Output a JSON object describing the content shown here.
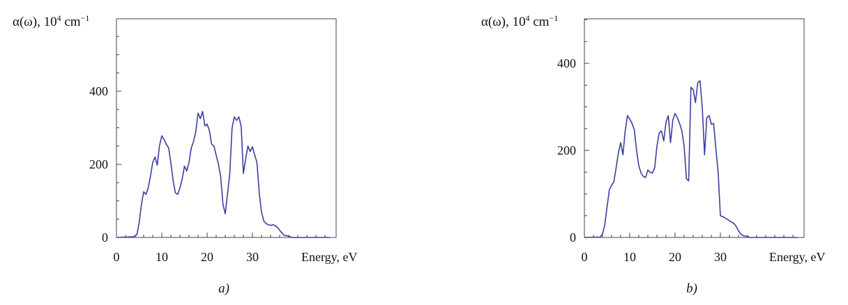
{
  "chart_data": [
    {
      "type": "line",
      "panel_label": "a)",
      "ylabel_html": "α(ω), 10⁴ cm⁻¹",
      "ylabel": {
        "prefix": "α(ω), 10",
        "exp1": "4",
        "mid": " cm",
        "exp2": "−1"
      },
      "xlabel": "Energy, eV",
      "xlim": [
        0,
        47
      ],
      "ylim": [
        0,
        600
      ],
      "xticks": [
        0,
        10,
        20,
        30
      ],
      "yticks": [
        0,
        200,
        400
      ],
      "grid": false,
      "series": [
        {
          "color": "#3a3f9e",
          "x": [
            0,
            4,
            4.5,
            5,
            5.5,
            6,
            6.5,
            7,
            7.5,
            8,
            8.5,
            9,
            9.5,
            10,
            10.5,
            11,
            11.5,
            12,
            12.5,
            13,
            13.5,
            14,
            14.5,
            15,
            15.5,
            16,
            16.5,
            17,
            17.5,
            18,
            18.5,
            19,
            19.5,
            20,
            20.5,
            21,
            21.5,
            22,
            22.5,
            23,
            23.5,
            24,
            24.5,
            25,
            25.5,
            26,
            26.5,
            27,
            27.5,
            28,
            28.5,
            29,
            29.5,
            30,
            30.5,
            31,
            31.5,
            32,
            32.5,
            33,
            33.5,
            34,
            34.5,
            35,
            35.5,
            36,
            36.5,
            37,
            37.5,
            38,
            38.5,
            39,
            39.5,
            40,
            40.5,
            41,
            41.5,
            42,
            42.5,
            43,
            43.5,
            44,
            44.5,
            45,
            46,
            47
          ],
          "y": [
            0,
            2,
            8,
            40,
            90,
            125,
            118,
            135,
            168,
            205,
            220,
            198,
            252,
            278,
            268,
            255,
            245,
            205,
            155,
            122,
            118,
            135,
            160,
            195,
            182,
            205,
            245,
            262,
            290,
            340,
            325,
            345,
            305,
            310,
            292,
            255,
            250,
            225,
            200,
            165,
            90,
            65,
            120,
            175,
            300,
            330,
            320,
            330,
            305,
            175,
            215,
            250,
            235,
            248,
            225,
            205,
            120,
            70,
            45,
            38,
            35,
            33,
            35,
            32,
            28,
            20,
            12,
            6,
            5,
            3,
            1,
            0,
            0,
            0,
            0,
            0,
            0,
            0,
            0,
            0,
            0,
            0,
            0,
            0,
            0,
            0
          ]
        }
      ]
    },
    {
      "type": "line",
      "panel_label": "b)",
      "ylabel_html": "α(ω), 10⁴ cm⁻¹",
      "ylabel": {
        "prefix": "α(ω), 10",
        "exp1": "4",
        "mid": " cm",
        "exp2": "−1"
      },
      "xlabel": "Energy, eV",
      "xlim": [
        0,
        47
      ],
      "ylim": [
        0,
        600
      ],
      "xticks": [
        0,
        10,
        20,
        30
      ],
      "yticks": [
        0,
        200,
        400
      ],
      "grid": false,
      "series": [
        {
          "color": "#3a3f9e",
          "x": [
            0,
            3.5,
            4,
            4.5,
            5,
            5.5,
            6,
            6.5,
            7,
            7.5,
            8,
            8.5,
            9,
            9.5,
            10,
            10.5,
            11,
            11.5,
            12,
            12.5,
            13,
            13.5,
            14,
            14.5,
            15,
            15.5,
            16,
            16.5,
            17,
            17.5,
            18,
            18.5,
            19,
            19.5,
            20,
            20.5,
            21,
            21.5,
            22,
            22.5,
            23,
            23.5,
            24,
            24.5,
            25,
            25.5,
            26,
            26.5,
            27,
            27.5,
            28,
            28.5,
            29,
            29.5,
            30,
            30.5,
            31,
            31.5,
            32,
            32.5,
            33,
            33.5,
            34,
            34.5,
            35,
            35.5,
            36,
            36.5,
            37,
            37.5,
            38,
            38.5,
            39,
            39.5,
            40,
            40.5,
            41,
            41.5,
            42,
            42.5,
            43,
            43.5,
            44,
            45,
            46,
            47
          ],
          "y": [
            0,
            1,
            8,
            30,
            70,
            110,
            120,
            128,
            160,
            195,
            218,
            190,
            245,
            280,
            272,
            262,
            248,
            200,
            165,
            148,
            140,
            138,
            155,
            150,
            148,
            160,
            210,
            240,
            245,
            222,
            265,
            280,
            218,
            270,
            285,
            275,
            262,
            245,
            210,
            135,
            130,
            345,
            340,
            310,
            355,
            360,
            300,
            190,
            275,
            280,
            260,
            262,
            205,
            150,
            50,
            48,
            45,
            42,
            38,
            35,
            32,
            25,
            15,
            8,
            4,
            3,
            2,
            0,
            0,
            0,
            0,
            0,
            0,
            0,
            0,
            0,
            0,
            0,
            0,
            0,
            0,
            0,
            0,
            0,
            0,
            0
          ]
        }
      ]
    }
  ]
}
